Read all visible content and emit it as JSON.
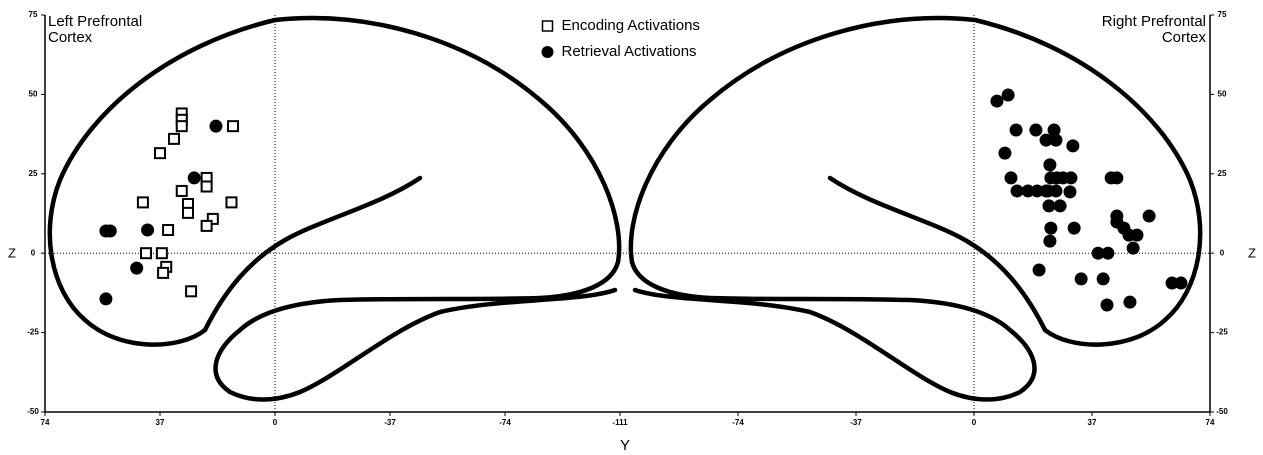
{
  "chart_data": [
    {
      "type": "scatter",
      "title": "Left Prefrontal Cortex",
      "xlabel": "Y",
      "ylabel": "Z",
      "xlim": [
        74,
        -111
      ],
      "ylim": [
        -50,
        75
      ],
      "xticks": [
        74,
        37,
        0,
        -37,
        -74,
        -111
      ],
      "yticks": [
        75,
        50,
        25,
        0,
        -25,
        -50
      ],
      "legend": "top",
      "series": [
        {
          "name": "Encoding Activations",
          "marker": "square",
          "color": "#000000",
          "x": [
            30,
            30,
            30,
            32.5,
            37,
            13.5,
            22,
            22,
            30,
            28,
            28,
            42.5,
            34.4,
            20,
            22,
            14,
            41.5,
            36.4,
            35,
            36,
            27
          ],
          "values": [
            44,
            42,
            40,
            36,
            31.5,
            40,
            23.7,
            21,
            19.6,
            15.5,
            12.7,
            16,
            7.3,
            10.8,
            8.6,
            16,
            0,
            0,
            -4.3,
            -6.2,
            -12
          ]
        },
        {
          "name": "Retrieval Activations",
          "marker": "circle",
          "color": "#000000",
          "x": [
            54.4,
            53,
            41,
            19,
            26,
            44.5,
            54.4
          ],
          "values": [
            7,
            7,
            7.3,
            40,
            23.7,
            -4.7,
            -14.4
          ]
        }
      ]
    },
    {
      "type": "scatter",
      "title": "Right Prefrontal Cortex",
      "ylabel": "Z",
      "xlim": [
        -111,
        74
      ],
      "ylim": [
        -50,
        75
      ],
      "xticks": [
        -74,
        -37,
        0,
        37,
        74
      ],
      "yticks": [
        75,
        50,
        25,
        0,
        -25,
        -50
      ],
      "series": [
        {
          "marker": "circle",
          "color": "#000000",
          "x": [
            7.2,
            10.7,
            9.7,
            13.2,
            19.4,
            25.1,
            11.6,
            13.5,
            16.9,
            19.8,
            22.6,
            23.8,
            25.7,
            22.6,
            24.1,
            26,
            27.9,
            23.5,
            27,
            30.4,
            31,
            23.2,
            25.7,
            30.1,
            24.1,
            23.8,
            31.4,
            43,
            44.8,
            44.8,
            44.8,
            47,
            48.6,
            54.9,
            51.1,
            49.9,
            38.9,
            42,
            40.5,
            20.4,
            33.6,
            41.7,
            48.9,
            62.1,
            64.9
          ],
          "values": [
            47.9,
            49.8,
            31.5,
            38.8,
            38.8,
            38.8,
            23.7,
            19.6,
            19.6,
            19.6,
            19.6,
            27.8,
            35.6,
            35.6,
            23.7,
            23.7,
            23.7,
            14.9,
            14.9,
            23.7,
            33.8,
            19.6,
            19.6,
            19.3,
            7.9,
            3.8,
            7.9,
            23.7,
            23.7,
            11.7,
            9.8,
            7.9,
            5.7,
            11.7,
            5.7,
            1.6,
            0,
            0,
            -8.1,
            -5.3,
            -8.1,
            -16.3,
            -15.4,
            -9.4,
            -9.4
          ]
        }
      ]
    }
  ]
}
